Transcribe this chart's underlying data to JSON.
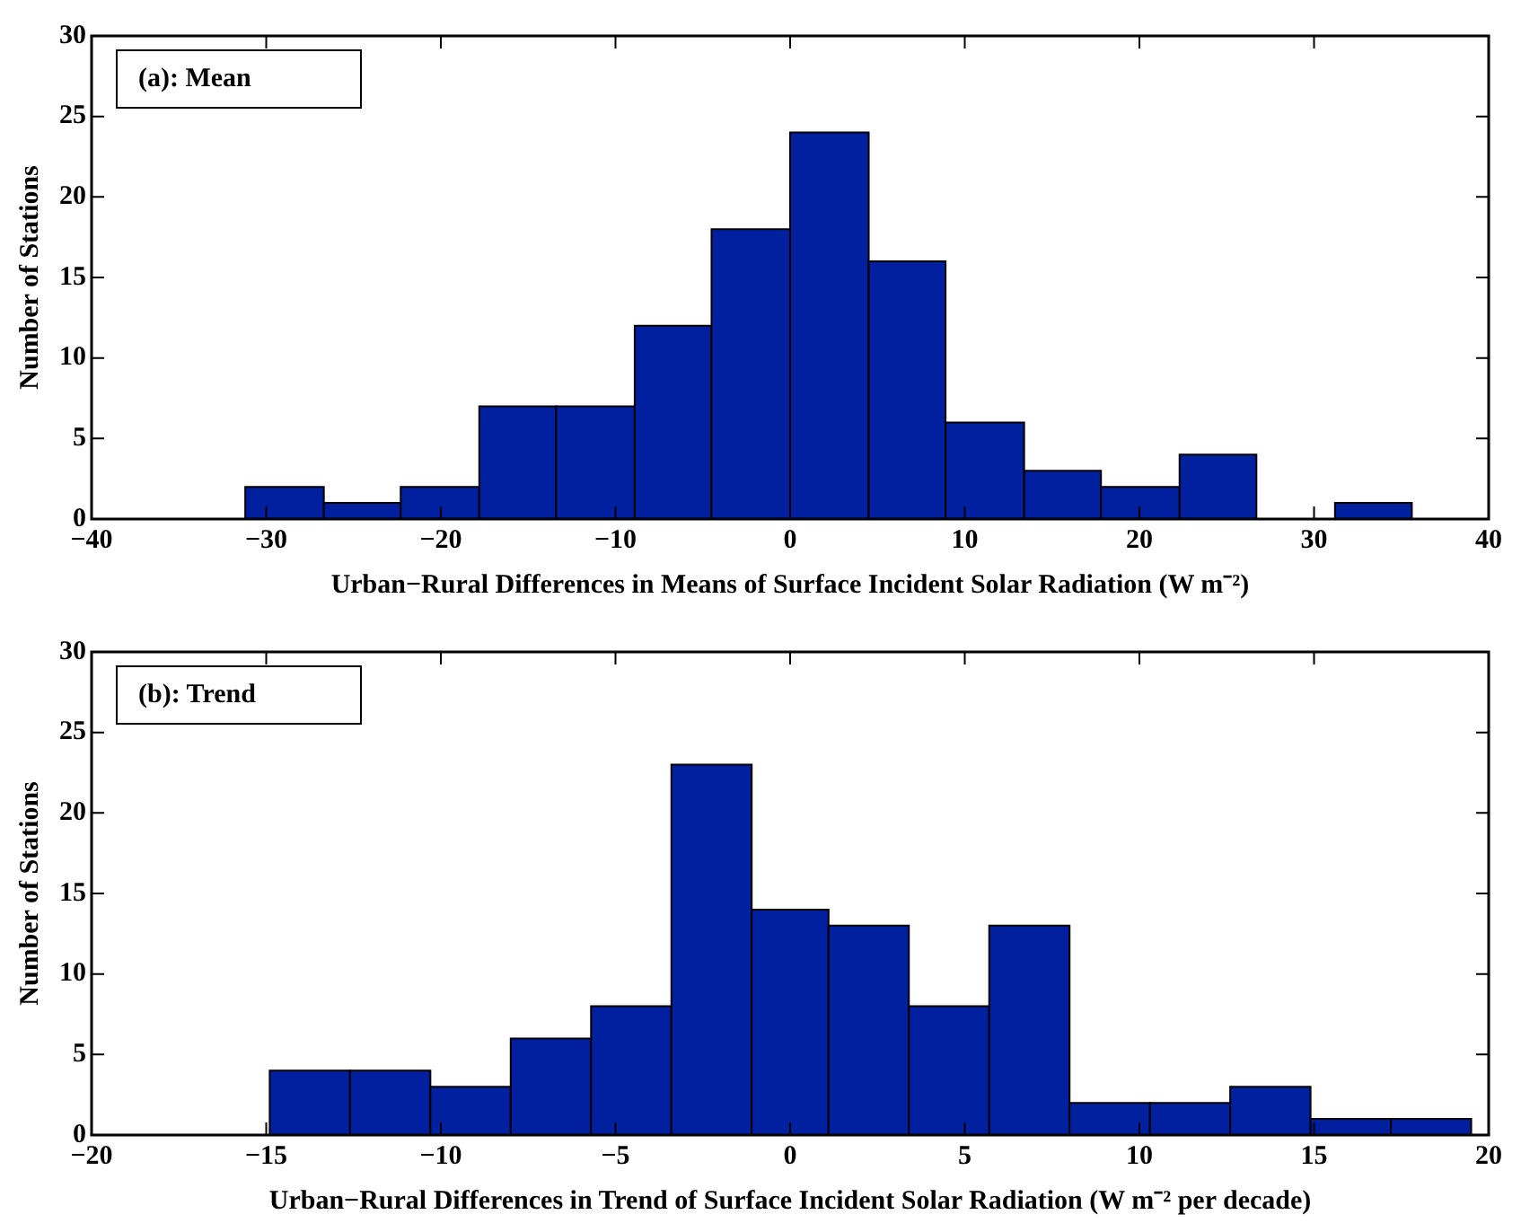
{
  "chart_data": [
    {
      "type": "histogram",
      "annotations": [
        "(a): Mean"
      ],
      "xlabel": "Urban−Rural Differences in Means of Surface Incident Solar Radiation (W m⁻²)",
      "ylabel": "Number of Stations",
      "bins": [
        -31.2,
        -26.7,
        -22.3,
        -17.8,
        -13.4,
        -8.9,
        -4.5,
        0,
        4.5,
        8.9,
        13.4,
        17.8,
        22.3,
        26.7,
        31.2,
        35.6
      ],
      "values": [
        2,
        1,
        2,
        7,
        7,
        12,
        18,
        24,
        16,
        6,
        3,
        2,
        4,
        0,
        1
      ],
      "color": "#0020a0",
      "xlim": [
        -40,
        40
      ],
      "xticks": [
        {
          "value": -40,
          "label": "−40"
        },
        {
          "value": -30,
          "label": "−30"
        },
        {
          "value": -20,
          "label": "−20"
        },
        {
          "value": -10,
          "label": "−10"
        },
        0,
        10,
        20,
        30,
        40
      ],
      "ylim": [
        0,
        30
      ],
      "yticks": [
        0,
        5,
        10,
        15,
        20,
        25,
        30
      ],
      "grid": false,
      "legend": false
    },
    {
      "type": "histogram",
      "annotations": [
        "(b): Trend"
      ],
      "xlabel": "Urban−Rural Differences in Trend of Surface Incident Solar Radiation (W m⁻² per decade)",
      "ylabel": "Number of Stations",
      "bins": [
        -14.9,
        -12.6,
        -10.3,
        -8.0,
        -5.7,
        -3.4,
        -1.1,
        1.1,
        3.4,
        5.7,
        8.0,
        10.3,
        12.6,
        14.9,
        17.2,
        19.5
      ],
      "values": [
        4,
        4,
        3,
        6,
        8,
        23,
        14,
        13,
        8,
        13,
        2,
        2,
        3,
        1,
        1
      ],
      "color": "#0020a0",
      "xlim": [
        -20,
        20
      ],
      "xticks": [
        {
          "value": -20,
          "label": "−20"
        },
        {
          "value": -15,
          "label": "−15"
        },
        {
          "value": -10,
          "label": "−10"
        },
        {
          "value": -5,
          "label": "−5"
        },
        0,
        5,
        10,
        15,
        20
      ],
      "ylim": [
        0,
        30
      ],
      "yticks": [
        0,
        5,
        10,
        15,
        20,
        25,
        30
      ],
      "grid": false,
      "legend": false
    }
  ]
}
